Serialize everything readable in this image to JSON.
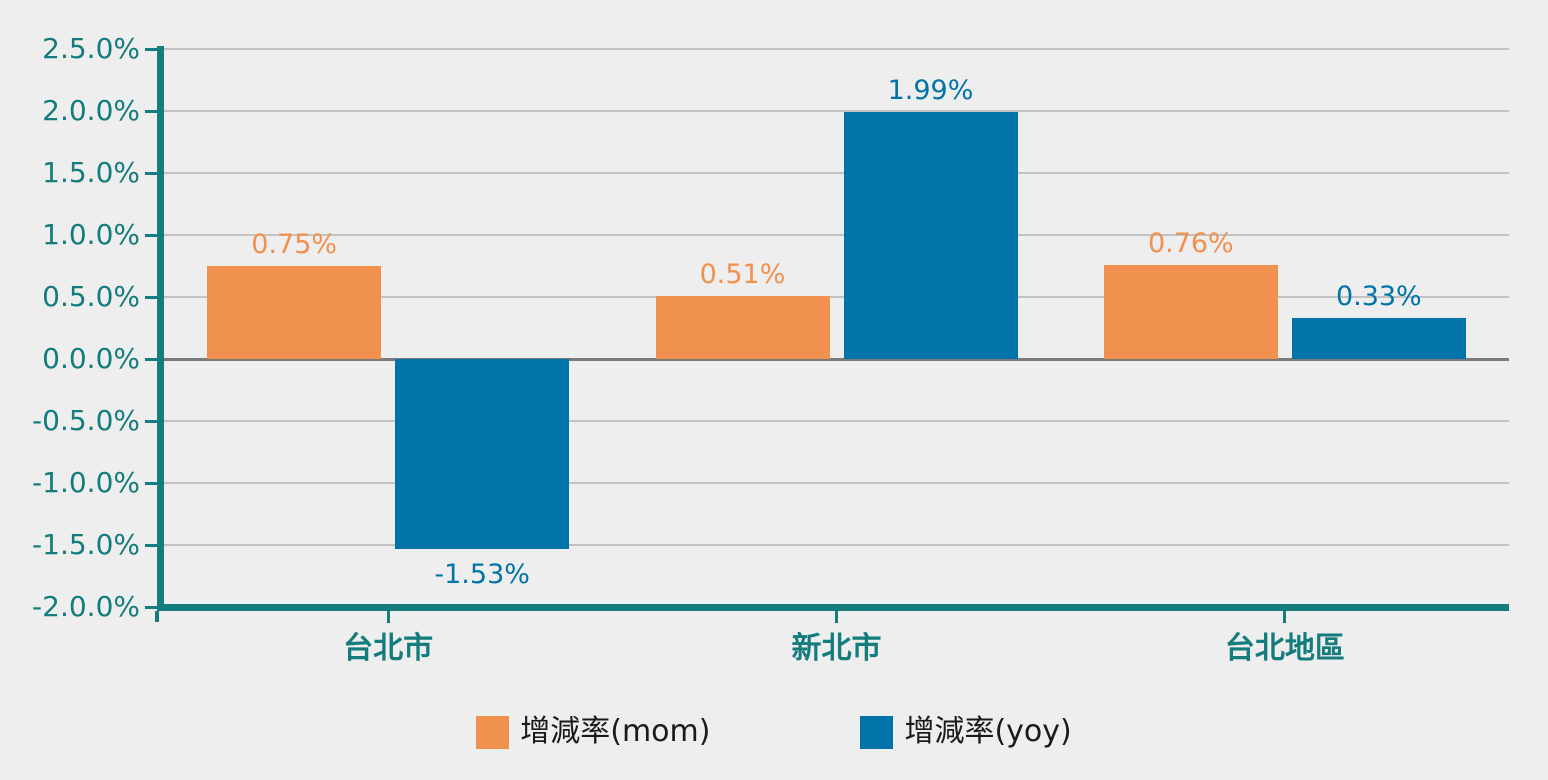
{
  "chart_data": {
    "type": "bar",
    "categories": [
      "台北市",
      "新北市",
      "台北地區"
    ],
    "series": [
      {
        "name": "增減率(mom)",
        "color": "#F0914E",
        "values": [
          0.75,
          0.51,
          0.76
        ],
        "data_labels": [
          "0.75%",
          "0.51%",
          "0.76%"
        ]
      },
      {
        "name": "增減率(yoy)",
        "color": "#0074A8",
        "values": [
          -1.53,
          1.99,
          0.33
        ],
        "data_labels": [
          "-1.53%",
          "1.99%",
          "0.33%"
        ]
      }
    ],
    "ylim": [
      -2.0,
      2.5
    ],
    "ytick_step": 0.5,
    "yticks": [
      {
        "label": "2.5.0%",
        "value": 2.5
      },
      {
        "label": "2.0.0%",
        "value": 2.0
      },
      {
        "label": "1.5.0%",
        "value": 1.5
      },
      {
        "label": "1.0.0%",
        "value": 1.0
      },
      {
        "label": "0.5.0%",
        "value": 0.5
      },
      {
        "label": "0.0.0%",
        "value": 0.0
      },
      {
        "label": "-0.5.0%",
        "value": -0.5
      },
      {
        "label": "-1.0.0%",
        "value": -1.0
      },
      {
        "label": "-1.5.0%",
        "value": -1.5
      },
      {
        "label": "-2.0.0%",
        "value": -2.0
      }
    ],
    "grid": true,
    "legend_position": "bottom",
    "legend": [
      "增減率(mom)",
      "增減率(yoy)"
    ],
    "colors": {
      "background": "#EEEEEE",
      "axis": "#147C7C",
      "axis_text": "#147C7C",
      "gridline": "#C2C2C2",
      "zero_line": "#7A7A7A",
      "legend_text": "#1A1A1A",
      "series_mom": "#F0914E",
      "series_yoy": "#0074A8"
    }
  }
}
